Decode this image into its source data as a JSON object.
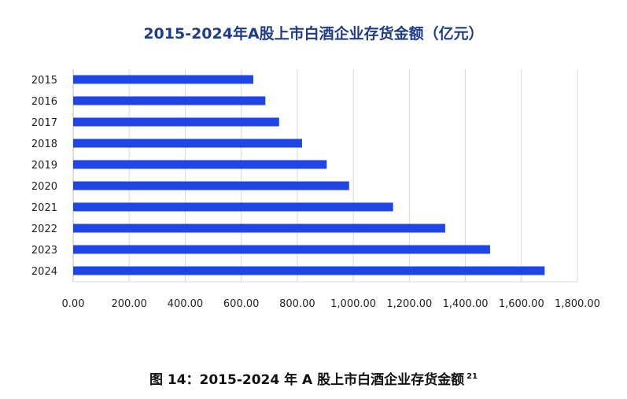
{
  "chart_data": {
    "type": "bar",
    "orientation": "horizontal",
    "title": "2015-2024年A股上市白酒企业存货金额（亿元）",
    "categories": [
      "2015",
      "2016",
      "2017",
      "2018",
      "2019",
      "2020",
      "2021",
      "2022",
      "2023",
      "2024"
    ],
    "values": [
      643,
      686,
      735,
      817,
      905,
      985,
      1142,
      1328,
      1488,
      1683
    ],
    "x_ticks": [
      "0.00",
      "200.00",
      "400.00",
      "600.00",
      "800.00",
      "1,000.00",
      "1,200.00",
      "1,400.00",
      "1,600.00",
      "1,800.00"
    ],
    "xlim": [
      0,
      1800
    ],
    "xlabel": "",
    "ylabel": "",
    "grid": "vertical",
    "bar_color": "#1f45e6"
  },
  "caption": {
    "text": "图 14：2015-2024 年 A 股上市白酒企业存货金额",
    "superscript": "21"
  }
}
